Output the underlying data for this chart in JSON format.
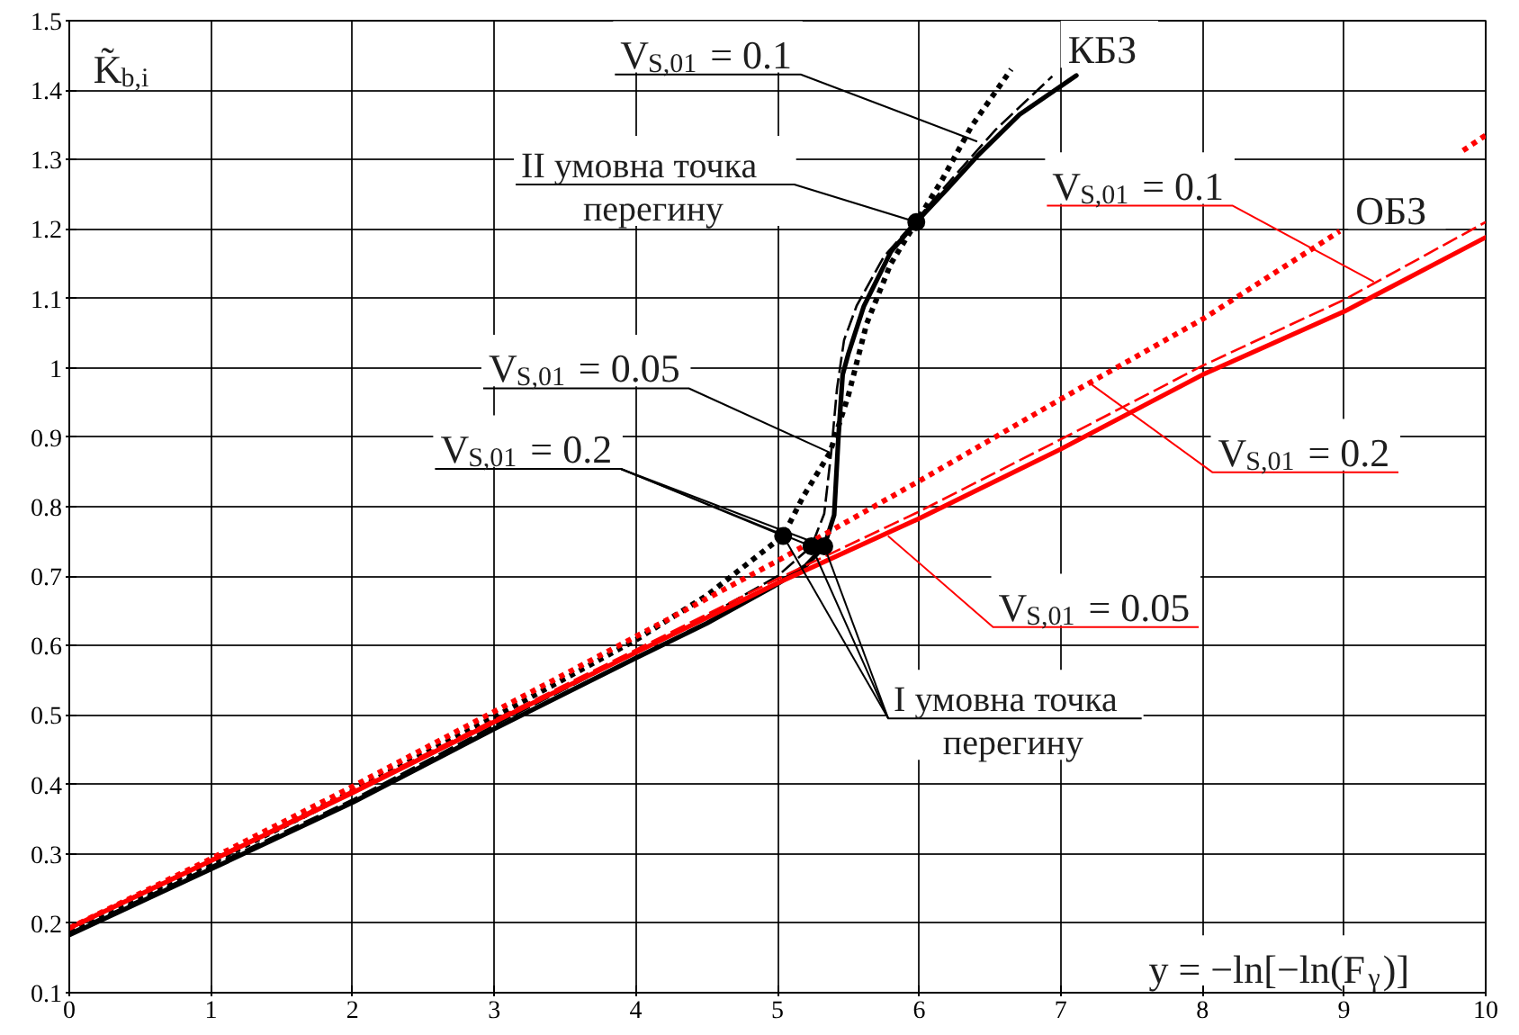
{
  "chart_data": {
    "type": "line",
    "xlabel": "y = −ln[−ln(F$_{γ}$)]",
    "ylabel": "K̃$_{b,i}$",
    "xlim": [
      0,
      10
    ],
    "ylim": [
      0.1,
      1.5
    ],
    "xticks": [
      0,
      1,
      2,
      3,
      4,
      5,
      6,
      7,
      8,
      9,
      10
    ],
    "yticks": [
      0.1,
      0.2,
      0.3,
      0.4,
      0.5,
      0.6,
      0.7,
      0.8,
      0.9,
      1,
      1.1,
      1.2,
      1.3,
      1.4,
      1.5
    ],
    "grid": true,
    "series": [
      {
        "color": "#000000",
        "line_style": "solid",
        "x": [
          0,
          1,
          2,
          3,
          4,
          4.5,
          4.97,
          5.2,
          5.33,
          5.4,
          5.43,
          5.46,
          5.5,
          5.61,
          5.8,
          5.98,
          6.2,
          6.41,
          6.71,
          7.11
        ],
        "values": [
          0.183,
          0.278,
          0.374,
          0.48,
          0.582,
          0.632,
          0.685,
          0.715,
          0.743,
          0.788,
          0.9,
          0.99,
          1.02,
          1.089,
          1.167,
          1.21,
          1.258,
          1.305,
          1.365,
          1.421
        ]
      },
      {
        "color": "#000000",
        "line_style": "dashed",
        "x": [
          0,
          1,
          2,
          3,
          4,
          4.5,
          5,
          5.24,
          5.33,
          5.38,
          5.42,
          5.47,
          5.56,
          5.75,
          5.98,
          6.2,
          6.54,
          6.94
        ],
        "values": [
          0.186,
          0.282,
          0.378,
          0.485,
          0.59,
          0.642,
          0.7,
          0.743,
          0.79,
          0.88,
          0.97,
          1.04,
          1.09,
          1.16,
          1.213,
          1.265,
          1.343,
          1.42
        ]
      },
      {
        "color": "#000000",
        "line_style": "dotted",
        "x": [
          0,
          1,
          2,
          3,
          4,
          4.5,
          5.04,
          5.18,
          5.37,
          5.5,
          5.63,
          5.8,
          5.98,
          6.16,
          6.37,
          6.65
        ],
        "values": [
          0.19,
          0.287,
          0.39,
          0.497,
          0.608,
          0.672,
          0.758,
          0.814,
          0.878,
          0.96,
          1.064,
          1.15,
          1.21,
          1.27,
          1.348,
          1.43
        ]
      },
      {
        "color": "#ff0000",
        "line_style": "solid",
        "x": [
          0,
          1,
          2,
          3,
          4,
          5,
          6,
          7,
          8,
          9,
          10
        ],
        "values": [
          0.193,
          0.29,
          0.388,
          0.49,
          0.59,
          0.69,
          0.783,
          0.883,
          0.99,
          1.081,
          1.188
        ]
      },
      {
        "color": "#ff0000",
        "line_style": "dashed",
        "x": [
          0,
          1,
          2,
          3,
          4,
          5,
          6,
          7,
          8,
          9,
          10
        ],
        "values": [
          0.195,
          0.292,
          0.391,
          0.493,
          0.594,
          0.696,
          0.793,
          0.897,
          1.003,
          1.098,
          1.21
        ]
      },
      {
        "color": "#ff0000",
        "line_style": "dotted",
        "x": [
          0,
          1,
          2,
          3,
          4,
          5,
          6,
          7,
          8,
          8.97,
          9.4,
          9.84,
          10
        ],
        "values": [
          0.193,
          0.293,
          0.397,
          0.505,
          0.613,
          0.722,
          0.837,
          0.955,
          1.07,
          1.197,
          null,
          1.313,
          1.335
        ]
      },
      {
        "type": "scatter",
        "marker": "circle",
        "color": "#000000",
        "x": [
          5.04,
          5.24,
          5.33,
          5.98
        ],
        "values": [
          0.758,
          0.743,
          0.743,
          1.21
        ]
      }
    ],
    "annotations": [
      "КБЗ",
      "ОБЗ",
      {
        "text": "II умовна точка\nперегину",
        "x": 5.98,
        "y": 1.21
      },
      {
        "text": "I умовна точка\nперегину",
        "x": 5.24,
        "y": 0.743
      },
      {
        "text": "V$_{S,01}$ = 0.1",
        "x": 6.41,
        "y": 1.326
      },
      {
        "text": "V$_{S,01}$ = 0.05",
        "x": 5.37,
        "y": 0.878
      },
      {
        "text": "V$_{S,01}$ = 0.2",
        "x": 5.04,
        "y": 0.758
      },
      {
        "text": "V$_{S,01}$ = 0.1",
        "x": 9.21,
        "y": 1.124
      },
      {
        "text": "V$_{S,01}$ = 0.2",
        "x": 7.19,
        "y": 0.98
      },
      {
        "text": "V$_{S,01}$ = 0.05",
        "x": 5.78,
        "y": 0.758
      }
    ]
  }
}
